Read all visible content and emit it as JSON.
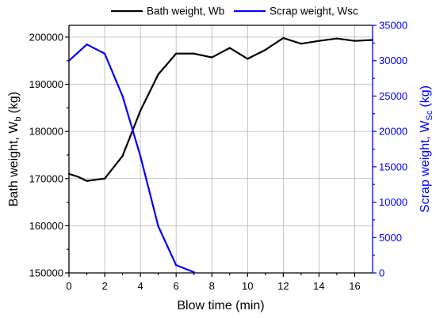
{
  "chart_data": {
    "type": "line",
    "grid": true,
    "legend": "top-center",
    "x_axis": {
      "label": "Blow time (min)",
      "lim": [
        0,
        17
      ],
      "ticks": [
        0,
        2,
        4,
        6,
        8,
        10,
        12,
        14,
        16
      ],
      "color": "#000000"
    },
    "y_axis_left": {
      "label": "Bath weight, W",
      "label_subscript": "b",
      "label_unit": "(kg)",
      "lim": [
        150000,
        202500
      ],
      "ticks": [
        150000,
        160000,
        170000,
        180000,
        190000,
        200000
      ],
      "color": "#000000"
    },
    "y_axis_right": {
      "label": "Scrap weight, W",
      "label_subscript": "Sc",
      "label_unit": "(kg)",
      "lim": [
        0,
        35000
      ],
      "ticks": [
        0,
        5000,
        10000,
        15000,
        20000,
        25000,
        30000,
        35000
      ],
      "color": "#0000ff"
    },
    "series": [
      {
        "name": "Bath weight, Wb",
        "axis": "left",
        "color": "#000000",
        "x": [
          0,
          0.5,
          1,
          2,
          3,
          4,
          5,
          6,
          7,
          8,
          9,
          10,
          11,
          12,
          13,
          14,
          15,
          16,
          17
        ],
        "y": [
          171000,
          170400,
          169500,
          170000,
          174800,
          184400,
          192100,
          196500,
          196500,
          195700,
          197700,
          195400,
          197300,
          199800,
          198600,
          199200,
          199700,
          199200,
          199400
        ]
      },
      {
        "name": "Scrap weight, Wsc",
        "axis": "right",
        "color": "#0000ff",
        "x": [
          0,
          1,
          2,
          3,
          4,
          5,
          6,
          7
        ],
        "y": [
          30000,
          32300,
          31000,
          25000,
          16500,
          6600,
          1100,
          100
        ]
      }
    ]
  }
}
